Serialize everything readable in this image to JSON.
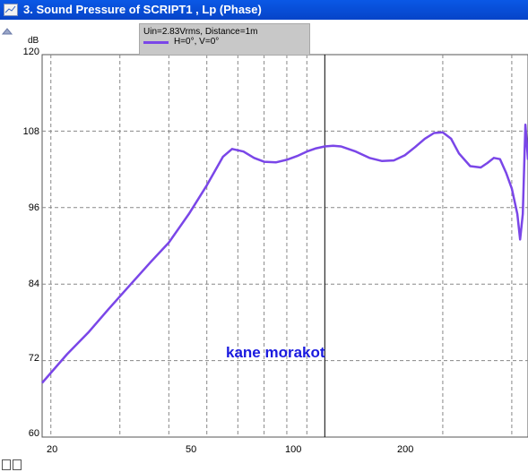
{
  "window": {
    "title": "3. Sound Pressure of SCRIPT1 , Lp (Phase)",
    "title_icon": "chart-icon"
  },
  "legend": {
    "conditions": "Uin=2.83Vrms, Distance=1m",
    "series_label": "H=0°, V=0°"
  },
  "watermark": "kane morakot",
  "colors": {
    "titlebar": "#0a58e6",
    "curve": "#7a46e8",
    "grid": "#888888",
    "watermark": "#1a1adf"
  },
  "chart_data": {
    "type": "line",
    "xscale": "log",
    "xlim": [
      19,
      330
    ],
    "ylim": [
      60,
      120
    ],
    "ylabel": "dB",
    "yticks": [
      "120",
      "108",
      "96",
      "84",
      "72",
      "60"
    ],
    "xticks": [
      "20",
      "50",
      "100",
      "200"
    ],
    "grid": true,
    "series": [
      {
        "name": "H=0°, V=0°",
        "x": [
          19,
          22,
          25,
          28,
          32,
          36,
          40,
          45,
          50,
          55,
          58,
          62,
          66,
          70,
          75,
          80,
          85,
          90,
          95,
          100,
          105,
          110,
          120,
          130,
          140,
          150,
          160,
          170,
          180,
          190,
          200,
          210,
          220,
          235,
          250,
          260,
          270,
          280,
          290,
          300,
          310,
          315,
          320,
          325,
          330
        ],
        "values": [
          68.5,
          73,
          76.5,
          80,
          84,
          87.5,
          90.5,
          95,
          99.5,
          104,
          105.2,
          104.8,
          103.8,
          103.2,
          103.1,
          103.5,
          104.1,
          104.8,
          105.3,
          105.6,
          105.7,
          105.6,
          104.8,
          103.8,
          103.3,
          103.4,
          104.2,
          105.5,
          106.8,
          107.7,
          107.8,
          106.8,
          104.5,
          102.5,
          102.3,
          103,
          103.8,
          103.6,
          101.5,
          99,
          95,
          91,
          95,
          109,
          103.5
        ]
      }
    ]
  }
}
